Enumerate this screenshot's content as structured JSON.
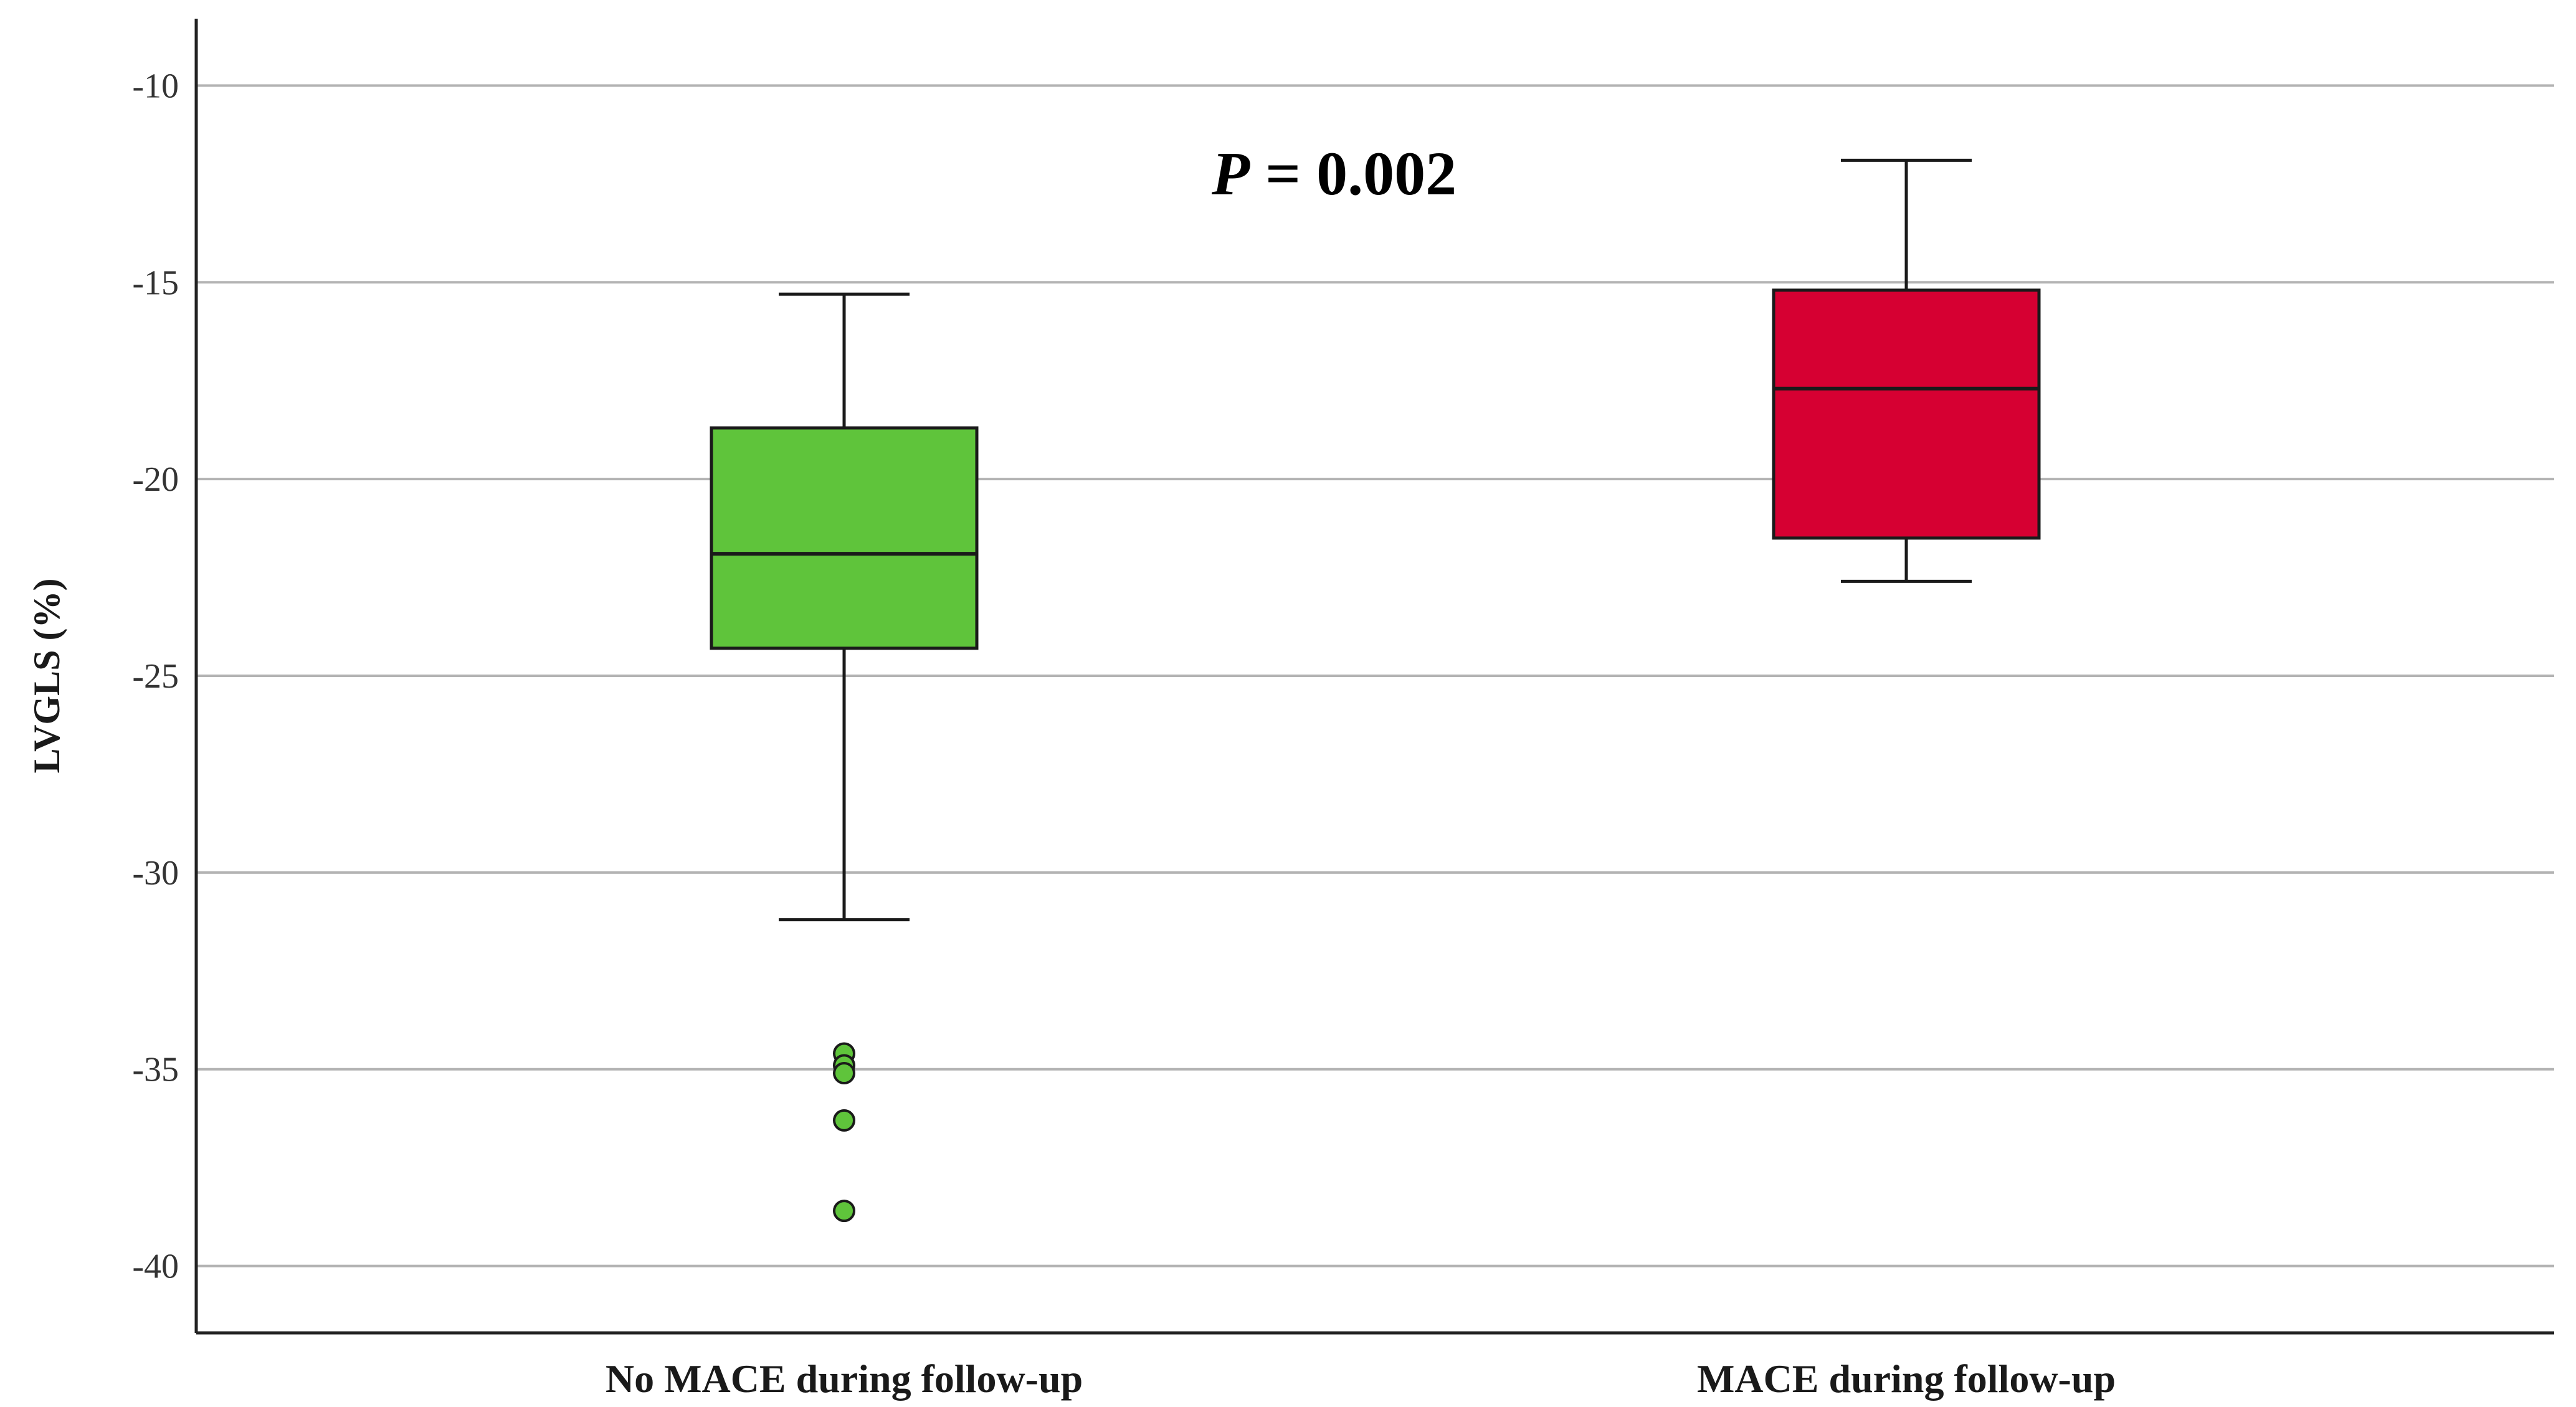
{
  "chart_data": {
    "type": "boxplot",
    "ylabel": "LVGLS (%)",
    "xlabel": "",
    "ylim": [
      -41.7,
      -8.3
    ],
    "yticks": [
      -10,
      -15,
      -20,
      -25,
      -30,
      -35,
      -40
    ],
    "grid": true,
    "annotation": {
      "italic": "P",
      "text": " = 0.002"
    },
    "categories": [
      "No MACE during follow-up",
      "MACE during follow-up"
    ],
    "series": [
      {
        "name": "No MACE during follow-up",
        "color": "#5fc43b",
        "whisker_low": -31.2,
        "q1": -24.3,
        "median": -21.9,
        "q3": -18.7,
        "whisker_high": -15.3,
        "outliers": [
          -34.6,
          -34.9,
          -35.1,
          -36.3,
          -38.6
        ]
      },
      {
        "name": "MACE during follow-up",
        "color": "#d60032",
        "whisker_low": -22.6,
        "q1": -21.5,
        "median": -17.7,
        "q3": -15.2,
        "whisker_high": -11.9,
        "outliers": []
      }
    ]
  }
}
